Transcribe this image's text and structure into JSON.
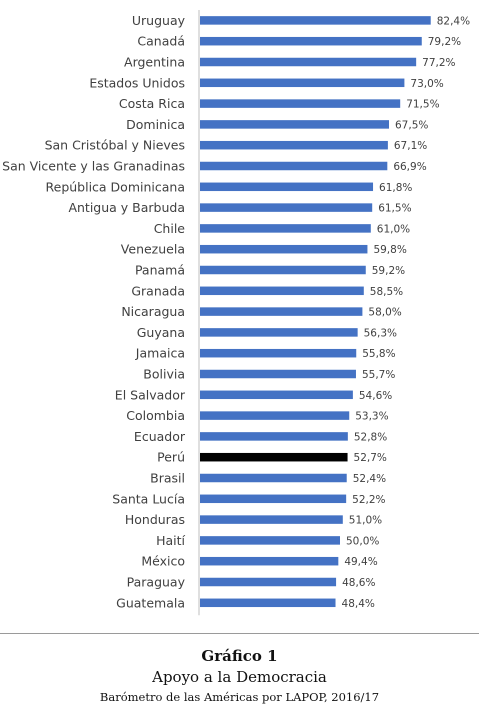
{
  "chart_data": {
    "type": "bar",
    "orientation": "horizontal",
    "categories": [
      "Uruguay",
      "Canadá",
      "Argentina",
      "Estados Unidos",
      "Costa Rica",
      "Dominica",
      "San Cristóbal y Nieves",
      "San Vicente y las Granadinas",
      "República Dominicana",
      "Antigua y Barbuda",
      "Chile",
      "Venezuela",
      "Panamá",
      "Granada",
      "Nicaragua",
      "Guyana",
      "Jamaica",
      "Bolivia",
      "El Salvador",
      "Colombia",
      "Ecuador",
      "Perú",
      "Brasil",
      "Santa Lucía",
      "Honduras",
      "Haití",
      "México",
      "Paraguay",
      "Guatemala"
    ],
    "values": [
      82.4,
      79.2,
      77.2,
      73.0,
      71.5,
      67.5,
      67.1,
      66.9,
      61.8,
      61.5,
      61.0,
      59.8,
      59.2,
      58.5,
      58.0,
      56.3,
      55.8,
      55.7,
      54.6,
      53.3,
      52.8,
      52.7,
      52.4,
      52.2,
      51.0,
      50.0,
      49.4,
      48.6,
      48.4
    ],
    "value_labels": [
      "82,4%",
      "79,2%",
      "77,2%",
      "73,0%",
      "71,5%",
      "67,5%",
      "67,1%",
      "66,9%",
      "61,8%",
      "61,5%",
      "61,0%",
      "59,8%",
      "59,2%",
      "58,5%",
      "58,0%",
      "56,3%",
      "55,8%",
      "55,7%",
      "54,6%",
      "53,3%",
      "52,8%",
      "52,7%",
      "52,4%",
      "52,2%",
      "51,0%",
      "50,0%",
      "49,4%",
      "48,6%",
      "48,4%"
    ],
    "xlim": [
      0,
      100
    ],
    "bar_color": "#4472c4",
    "highlight_category": "Perú",
    "highlight_color": "#000000",
    "grid": false,
    "legend": "none"
  },
  "caption": {
    "number": "Gráfico 1",
    "title": "Apoyo a la Democracia",
    "source": "Barómetro de las Américas por LAPOP, 2016/17"
  }
}
